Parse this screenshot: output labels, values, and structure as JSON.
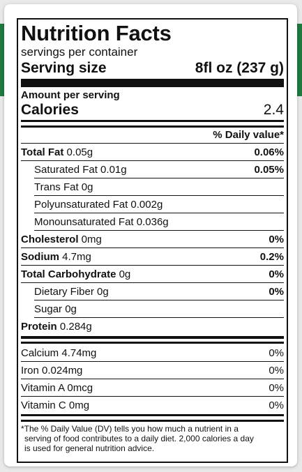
{
  "label": {
    "title": "Nutrition Facts",
    "servings_text": "servings per container",
    "serving_size_label": "Serving size",
    "serving_size_value": "8fl oz (237 g)",
    "amount_per_serving": "Amount per serving",
    "calories_label": "Calories",
    "calories_value": "2.4",
    "daily_value_header": "% Daily value*",
    "nutrients": [
      {
        "name": "Total Fat",
        "amount": " 0.05g",
        "pct": "0.06%"
      },
      {
        "name": "Saturated Fat",
        "amount": " 0.01g",
        "pct": "0.05%"
      },
      {
        "name": "Trans Fat",
        "amount": " 0g",
        "pct": ""
      },
      {
        "name": "Polyunsaturated Fat",
        "amount": " 0.002g",
        "pct": ""
      },
      {
        "name": "Monounsaturated Fat",
        "amount": " 0.036g",
        "pct": ""
      },
      {
        "name": "Cholesterol",
        "amount": " 0mg",
        "pct": "0%"
      },
      {
        "name": "Sodium",
        "amount": " 4.7mg",
        "pct": "0.2%"
      },
      {
        "name": "Total Carbohydrate",
        "amount": " 0g",
        "pct": "0%"
      },
      {
        "name": "Dietary Fiber",
        "amount": " 0g",
        "pct": "0%"
      },
      {
        "name": "Sugar",
        "amount": " 0g",
        "pct": ""
      },
      {
        "name": "Protein",
        "amount": " 0.284g",
        "pct": ""
      }
    ],
    "vitamins": [
      {
        "name": "Calcium",
        "amount": " 4.74mg",
        "pct": "0%"
      },
      {
        "name": "Iron",
        "amount": " 0.024mg",
        "pct": "0%"
      },
      {
        "name": "Vitamin A",
        "amount": " 0mcg",
        "pct": "0%"
      },
      {
        "name": "Vitamin C",
        "amount": " 0mg",
        "pct": "0%"
      }
    ],
    "footnote_lines": [
      "*The % Daily Value (DV) tells you how much a nutrient in a",
      "serving of food contributes to a daily diet. 2,000 calories a day",
      "is used for general nutrition advice."
    ]
  },
  "colors": {
    "accent_green": "#1f7a3f",
    "background": "#e9e9e9",
    "rule": "#111111"
  }
}
